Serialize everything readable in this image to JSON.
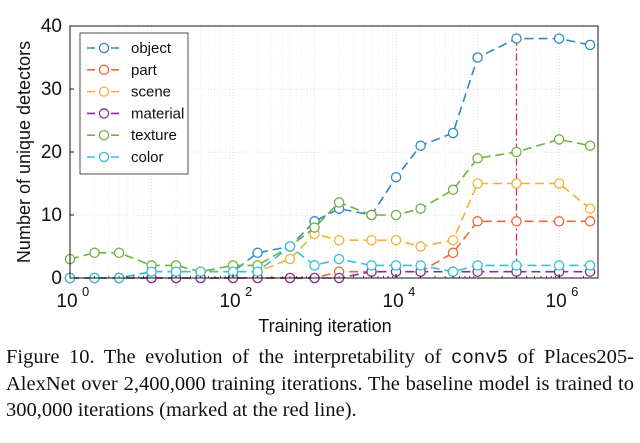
{
  "chart_data": {
    "type": "line",
    "xscale": "log",
    "x": [
      1,
      2,
      4,
      10,
      20,
      40,
      100,
      200,
      500,
      1000,
      2000,
      5000,
      10000,
      20000,
      50000,
      100000,
      300000,
      1000000,
      2400000
    ],
    "series": [
      {
        "name": "object",
        "color": "#2E8BC0",
        "values": [
          0,
          0,
          0,
          1,
          1,
          1,
          1,
          4,
          5,
          9,
          11,
          10,
          16,
          21,
          23,
          35,
          38,
          38,
          37
        ]
      },
      {
        "name": "part",
        "color": "#E8693D",
        "values": [
          0,
          0,
          0,
          0,
          0,
          0,
          0,
          0,
          0,
          0,
          1,
          1,
          1,
          1,
          4,
          9,
          9,
          9,
          9
        ]
      },
      {
        "name": "scene",
        "color": "#F2B134",
        "values": [
          0,
          0,
          0,
          1,
          1,
          1,
          1,
          1,
          3,
          7,
          6,
          6,
          6,
          5,
          6,
          15,
          15,
          15,
          11
        ]
      },
      {
        "name": "material",
        "color": "#8A2F90",
        "values": [
          0,
          0,
          0,
          0,
          0,
          0,
          0,
          0,
          0,
          0,
          0,
          1,
          1,
          1,
          1,
          1,
          1,
          1,
          1
        ]
      },
      {
        "name": "texture",
        "color": "#72B043",
        "values": [
          3,
          4,
          4,
          2,
          2,
          1,
          2,
          2,
          5,
          8,
          12,
          10,
          10,
          11,
          14,
          19,
          20,
          22,
          21
        ]
      },
      {
        "name": "color",
        "color": "#36C1D6",
        "values": [
          0,
          0,
          0,
          1,
          1,
          1,
          1,
          1,
          5,
          2,
          3,
          2,
          2,
          2,
          1,
          2,
          2,
          2,
          2
        ]
      }
    ],
    "xlim": [
      1,
      3000000
    ],
    "ylim": [
      0,
      40
    ],
    "yticks": [
      0,
      10,
      20,
      30,
      40
    ],
    "xticks": [
      {
        "value": 1,
        "base": "10",
        "exp": "0"
      },
      {
        "value": 100,
        "base": "10",
        "exp": "2"
      },
      {
        "value": 10000,
        "base": "10",
        "exp": "4"
      },
      {
        "value": 1000000,
        "base": "10",
        "exp": "6"
      }
    ],
    "xlabel": "Training iteration",
    "ylabel": "Number of unique detectors",
    "grid": true,
    "legend_position": "top-left",
    "annotations": [
      {
        "type": "vline",
        "x": 300000,
        "color": "#E0245E",
        "label": "baseline (300,000 iterations)"
      }
    ]
  },
  "caption": {
    "prefix": "Figure 10. The evolution of the interpretability of",
    "code": "conv5",
    "mid": "of",
    "suffix": "Places205-AlexNet over 2,400,000 training iterations. The baseline model is trained to 300,000 iterations (marked at the red line)."
  }
}
